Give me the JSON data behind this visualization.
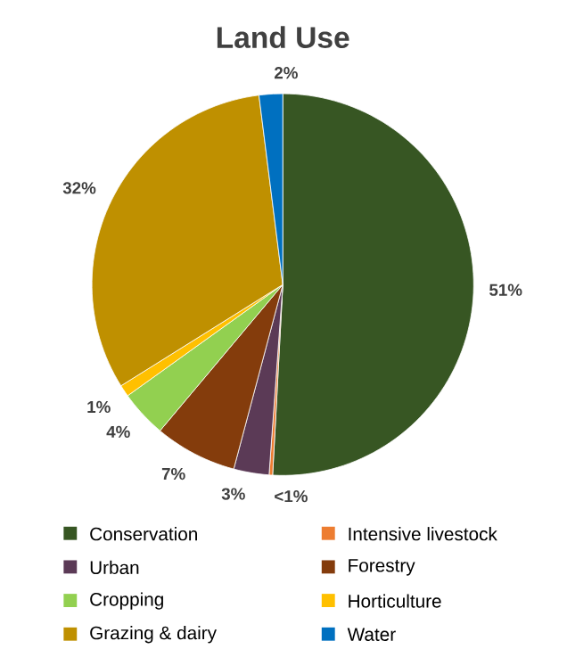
{
  "chart_data": {
    "type": "pie",
    "title": "Land Use",
    "categories": [
      "Conservation",
      "Intensive livestock",
      "Urban",
      "Forestry",
      "Cropping",
      "Horticulture",
      "Grazing & dairy",
      "Water"
    ],
    "values": [
      51,
      0.3,
      3,
      7,
      4,
      1,
      32,
      2
    ],
    "colors": [
      "#375623",
      "#ed7d31",
      "#5b3a56",
      "#843c0c",
      "#92d050",
      "#ffc000",
      "#bf9000",
      "#0070c0"
    ],
    "value_labels": [
      "51%",
      "<1%",
      "3%",
      "7%",
      "4%",
      "1%",
      "32%",
      "2%"
    ],
    "legend": "bottom"
  }
}
